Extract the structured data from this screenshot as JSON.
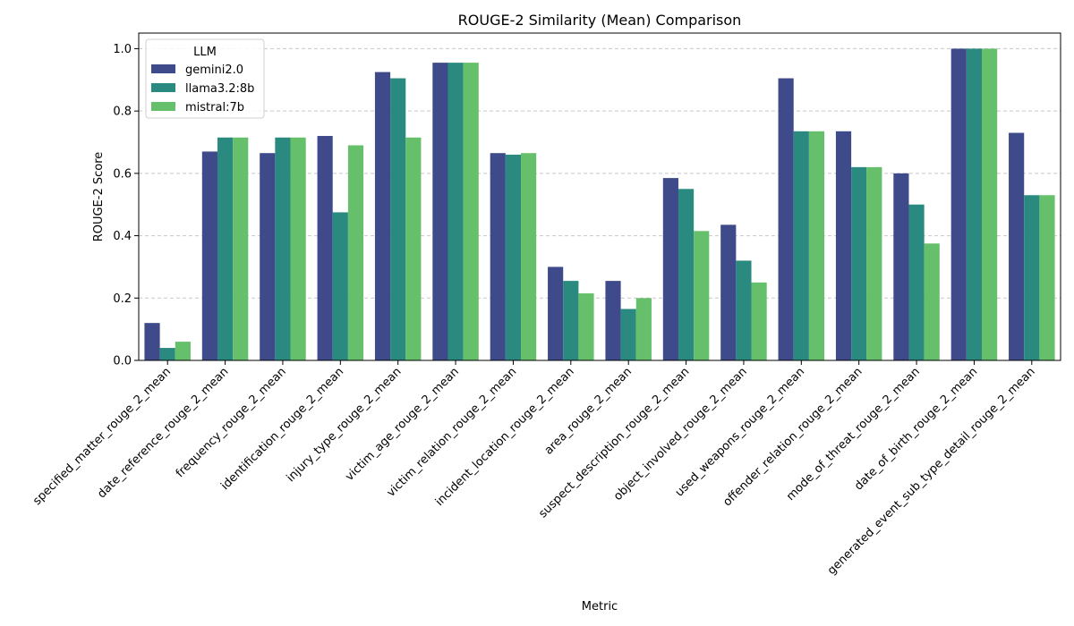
{
  "chart_data": {
    "type": "bar",
    "title": "ROUGE-2 Similarity (Mean) Comparison",
    "xlabel": "Metric",
    "ylabel": "ROUGE-2 Score",
    "ylim": [
      0,
      1.05
    ],
    "yticks": [
      "0.0",
      "0.2",
      "0.4",
      "0.6",
      "0.8",
      "1.0"
    ],
    "ytick_values": [
      0,
      0.2,
      0.4,
      0.6,
      0.8,
      1.0
    ],
    "grid": "y-dashed",
    "legend": {
      "title": "LLM",
      "placement": "upper-left"
    },
    "categories": [
      "specified_matter_rouge_2_mean",
      "date_reference_rouge_2_mean",
      "frequency_rouge_2_mean",
      "identification_rouge_2_mean",
      "injury_type_rouge_2_mean",
      "victim_age_rouge_2_mean",
      "victim_relation_rouge_2_mean",
      "incident_location_rouge_2_mean",
      "area_rouge_2_mean",
      "suspect_description_rouge_2_mean",
      "object_involved_rouge_2_mean",
      "used_weapons_rouge_2_mean",
      "offender_relation_rouge_2_mean",
      "mode_of_threat_rouge_2_mean",
      "date_of_birth_rouge_2_mean",
      "generated_event_sub_type_detail_rouge_2_mean"
    ],
    "series": [
      {
        "name": "gemini2.0",
        "color": "#3e4a89",
        "values": [
          0.12,
          0.67,
          0.665,
          0.72,
          0.925,
          0.955,
          0.665,
          0.3,
          0.255,
          0.585,
          0.435,
          0.905,
          0.735,
          0.6,
          1.0,
          0.73
        ]
      },
      {
        "name": "llama3.2:8b",
        "color": "#2a8a80",
        "values": [
          0.04,
          0.715,
          0.715,
          0.475,
          0.905,
          0.955,
          0.66,
          0.255,
          0.165,
          0.55,
          0.32,
          0.735,
          0.62,
          0.5,
          1.0,
          0.53
        ]
      },
      {
        "name": "mistral:7b",
        "color": "#66bf6a",
        "values": [
          0.06,
          0.715,
          0.715,
          0.69,
          0.715,
          0.955,
          0.665,
          0.215,
          0.2,
          0.415,
          0.25,
          0.735,
          0.62,
          0.375,
          1.0,
          0.53
        ]
      }
    ]
  }
}
